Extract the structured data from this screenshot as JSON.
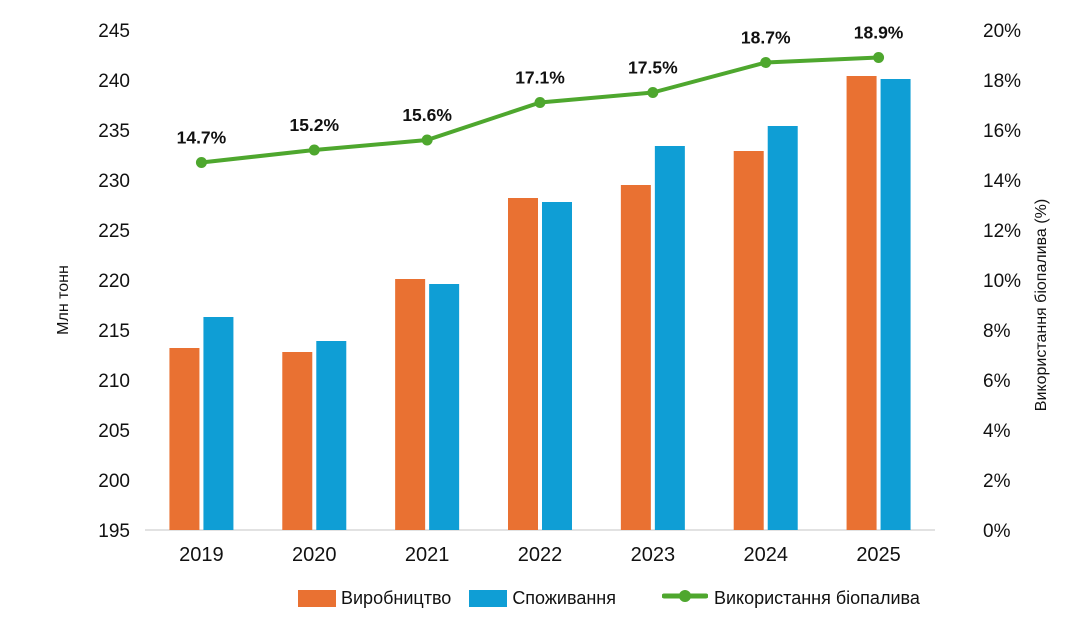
{
  "chart_data": {
    "type": "combo-bar-line",
    "categories": [
      "2019",
      "2020",
      "2021",
      "2022",
      "2023",
      "2024",
      "2025"
    ],
    "series": [
      {
        "name": "Виробництво",
        "type": "bar",
        "axis": "left",
        "color": "#E97132",
        "values": [
          213.2,
          212.8,
          220.1,
          228.2,
          229.5,
          232.9,
          240.4
        ]
      },
      {
        "name": "Споживання",
        "type": "bar",
        "axis": "left",
        "color": "#0F9ED5",
        "values": [
          216.3,
          213.9,
          219.6,
          227.8,
          233.4,
          235.4,
          240.1
        ]
      },
      {
        "name": "Використання біопалива",
        "type": "line",
        "axis": "right",
        "color": "#4EA72E",
        "values": [
          14.7,
          15.2,
          15.6,
          17.1,
          17.5,
          18.7,
          18.9
        ],
        "labels": [
          "14.7%",
          "15.2%",
          "15.6%",
          "17.1%",
          "17.5%",
          "18.7%",
          "18.9%"
        ]
      }
    ],
    "left_axis": {
      "title": "Млн тонн",
      "min": 195,
      "max": 245,
      "step": 5,
      "tick_labels": [
        "195",
        "200",
        "205",
        "210",
        "215",
        "220",
        "225",
        "230",
        "235",
        "240",
        "245"
      ]
    },
    "right_axis": {
      "title": "Використання біопалива (%)",
      "min": 0,
      "max": 20,
      "step": 2,
      "tick_labels": [
        "0%",
        "2%",
        "4%",
        "6%",
        "8%",
        "10%",
        "12%",
        "14%",
        "16%",
        "18%",
        "20%"
      ]
    },
    "legend": [
      {
        "label": "Виробництво",
        "marker": "bar-swatch",
        "color": "#E97132"
      },
      {
        "label": "Споживання",
        "marker": "bar-swatch",
        "color": "#0F9ED5"
      },
      {
        "label": "Використання біопалива",
        "marker": "line-dot",
        "color": "#4EA72E"
      }
    ],
    "legend_position": "bottom",
    "grid": false,
    "axis_line_color": "#D9D9D9",
    "text_color": "#111111"
  }
}
